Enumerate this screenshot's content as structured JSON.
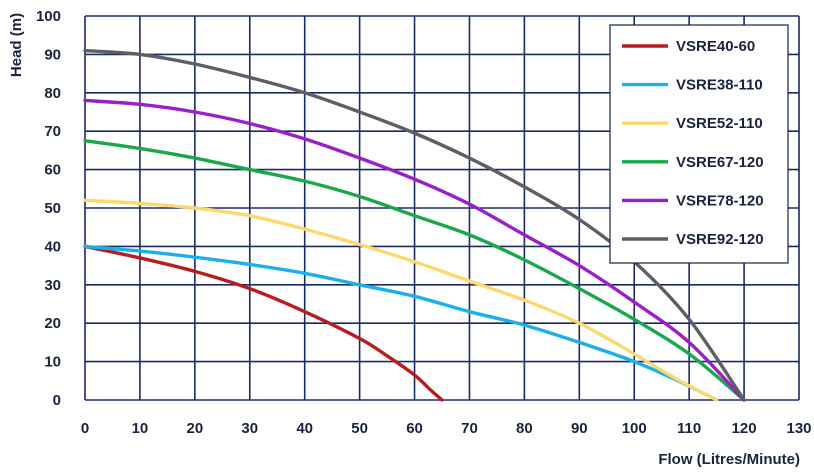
{
  "chart_data": {
    "type": "line",
    "title": "",
    "xlabel": "Flow (Litres/Minute)",
    "ylabel": "Head (m)",
    "xlim": [
      0,
      130
    ],
    "ylim": [
      0,
      100
    ],
    "xticks": [
      "0",
      "10",
      "20",
      "30",
      "40",
      "50",
      "60",
      "70",
      "80",
      "90",
      "100",
      "110",
      "120",
      "130"
    ],
    "yticks": [
      "0",
      "10",
      "20",
      "30",
      "40",
      "50",
      "60",
      "70",
      "80",
      "90",
      "100"
    ],
    "grid": true,
    "legend_position": "top-right",
    "colors": {
      "grid": "#1a2a66",
      "text": "#1a2340"
    },
    "series": [
      {
        "name": "VSRE40-60",
        "color": "#b81d1d",
        "points": [
          [
            0,
            40
          ],
          [
            10,
            37
          ],
          [
            20,
            33.5
          ],
          [
            30,
            29
          ],
          [
            40,
            23
          ],
          [
            50,
            16
          ],
          [
            55,
            11.5
          ],
          [
            60,
            6.5
          ],
          [
            63,
            2.5
          ],
          [
            65,
            0
          ]
        ]
      },
      {
        "name": "VSRE38-110",
        "color": "#1ab0ea",
        "points": [
          [
            0,
            40
          ],
          [
            10,
            38.8
          ],
          [
            20,
            37.2
          ],
          [
            30,
            35.3
          ],
          [
            40,
            33
          ],
          [
            50,
            30
          ],
          [
            60,
            27
          ],
          [
            70,
            23
          ],
          [
            80,
            19.5
          ],
          [
            90,
            15
          ],
          [
            100,
            10
          ],
          [
            108,
            5
          ],
          [
            115,
            0
          ]
        ]
      },
      {
        "name": "VSRE52-110",
        "color": "#fcd96e",
        "points": [
          [
            0,
            52
          ],
          [
            10,
            51.2
          ],
          [
            20,
            50
          ],
          [
            30,
            48
          ],
          [
            40,
            44.5
          ],
          [
            50,
            40.5
          ],
          [
            60,
            36
          ],
          [
            70,
            31
          ],
          [
            80,
            26
          ],
          [
            90,
            20
          ],
          [
            100,
            12
          ],
          [
            107,
            6
          ],
          [
            115,
            0
          ]
        ]
      },
      {
        "name": "VSRE67-120",
        "color": "#1aa84a",
        "points": [
          [
            0,
            67.5
          ],
          [
            10,
            65.5
          ],
          [
            20,
            63
          ],
          [
            30,
            60
          ],
          [
            40,
            57
          ],
          [
            50,
            53
          ],
          [
            60,
            48
          ],
          [
            70,
            43
          ],
          [
            80,
            36.5
          ],
          [
            90,
            29
          ],
          [
            100,
            21
          ],
          [
            110,
            12
          ],
          [
            120,
            0
          ]
        ]
      },
      {
        "name": "VSRE78-120",
        "color": "#9a1ec9",
        "points": [
          [
            0,
            78
          ],
          [
            10,
            77
          ],
          [
            20,
            75
          ],
          [
            30,
            72
          ],
          [
            40,
            68
          ],
          [
            50,
            63
          ],
          [
            60,
            57.5
          ],
          [
            70,
            51
          ],
          [
            80,
            43
          ],
          [
            90,
            35
          ],
          [
            100,
            25.5
          ],
          [
            110,
            15
          ],
          [
            120,
            0
          ]
        ]
      },
      {
        "name": "VSRE92-120",
        "color": "#5f5f63",
        "points": [
          [
            0,
            91
          ],
          [
            10,
            90
          ],
          [
            20,
            87.5
          ],
          [
            30,
            84
          ],
          [
            40,
            80
          ],
          [
            50,
            75
          ],
          [
            60,
            69.5
          ],
          [
            70,
            63
          ],
          [
            80,
            55.5
          ],
          [
            90,
            47
          ],
          [
            100,
            36
          ],
          [
            110,
            21
          ],
          [
            120,
            0
          ]
        ]
      }
    ]
  }
}
